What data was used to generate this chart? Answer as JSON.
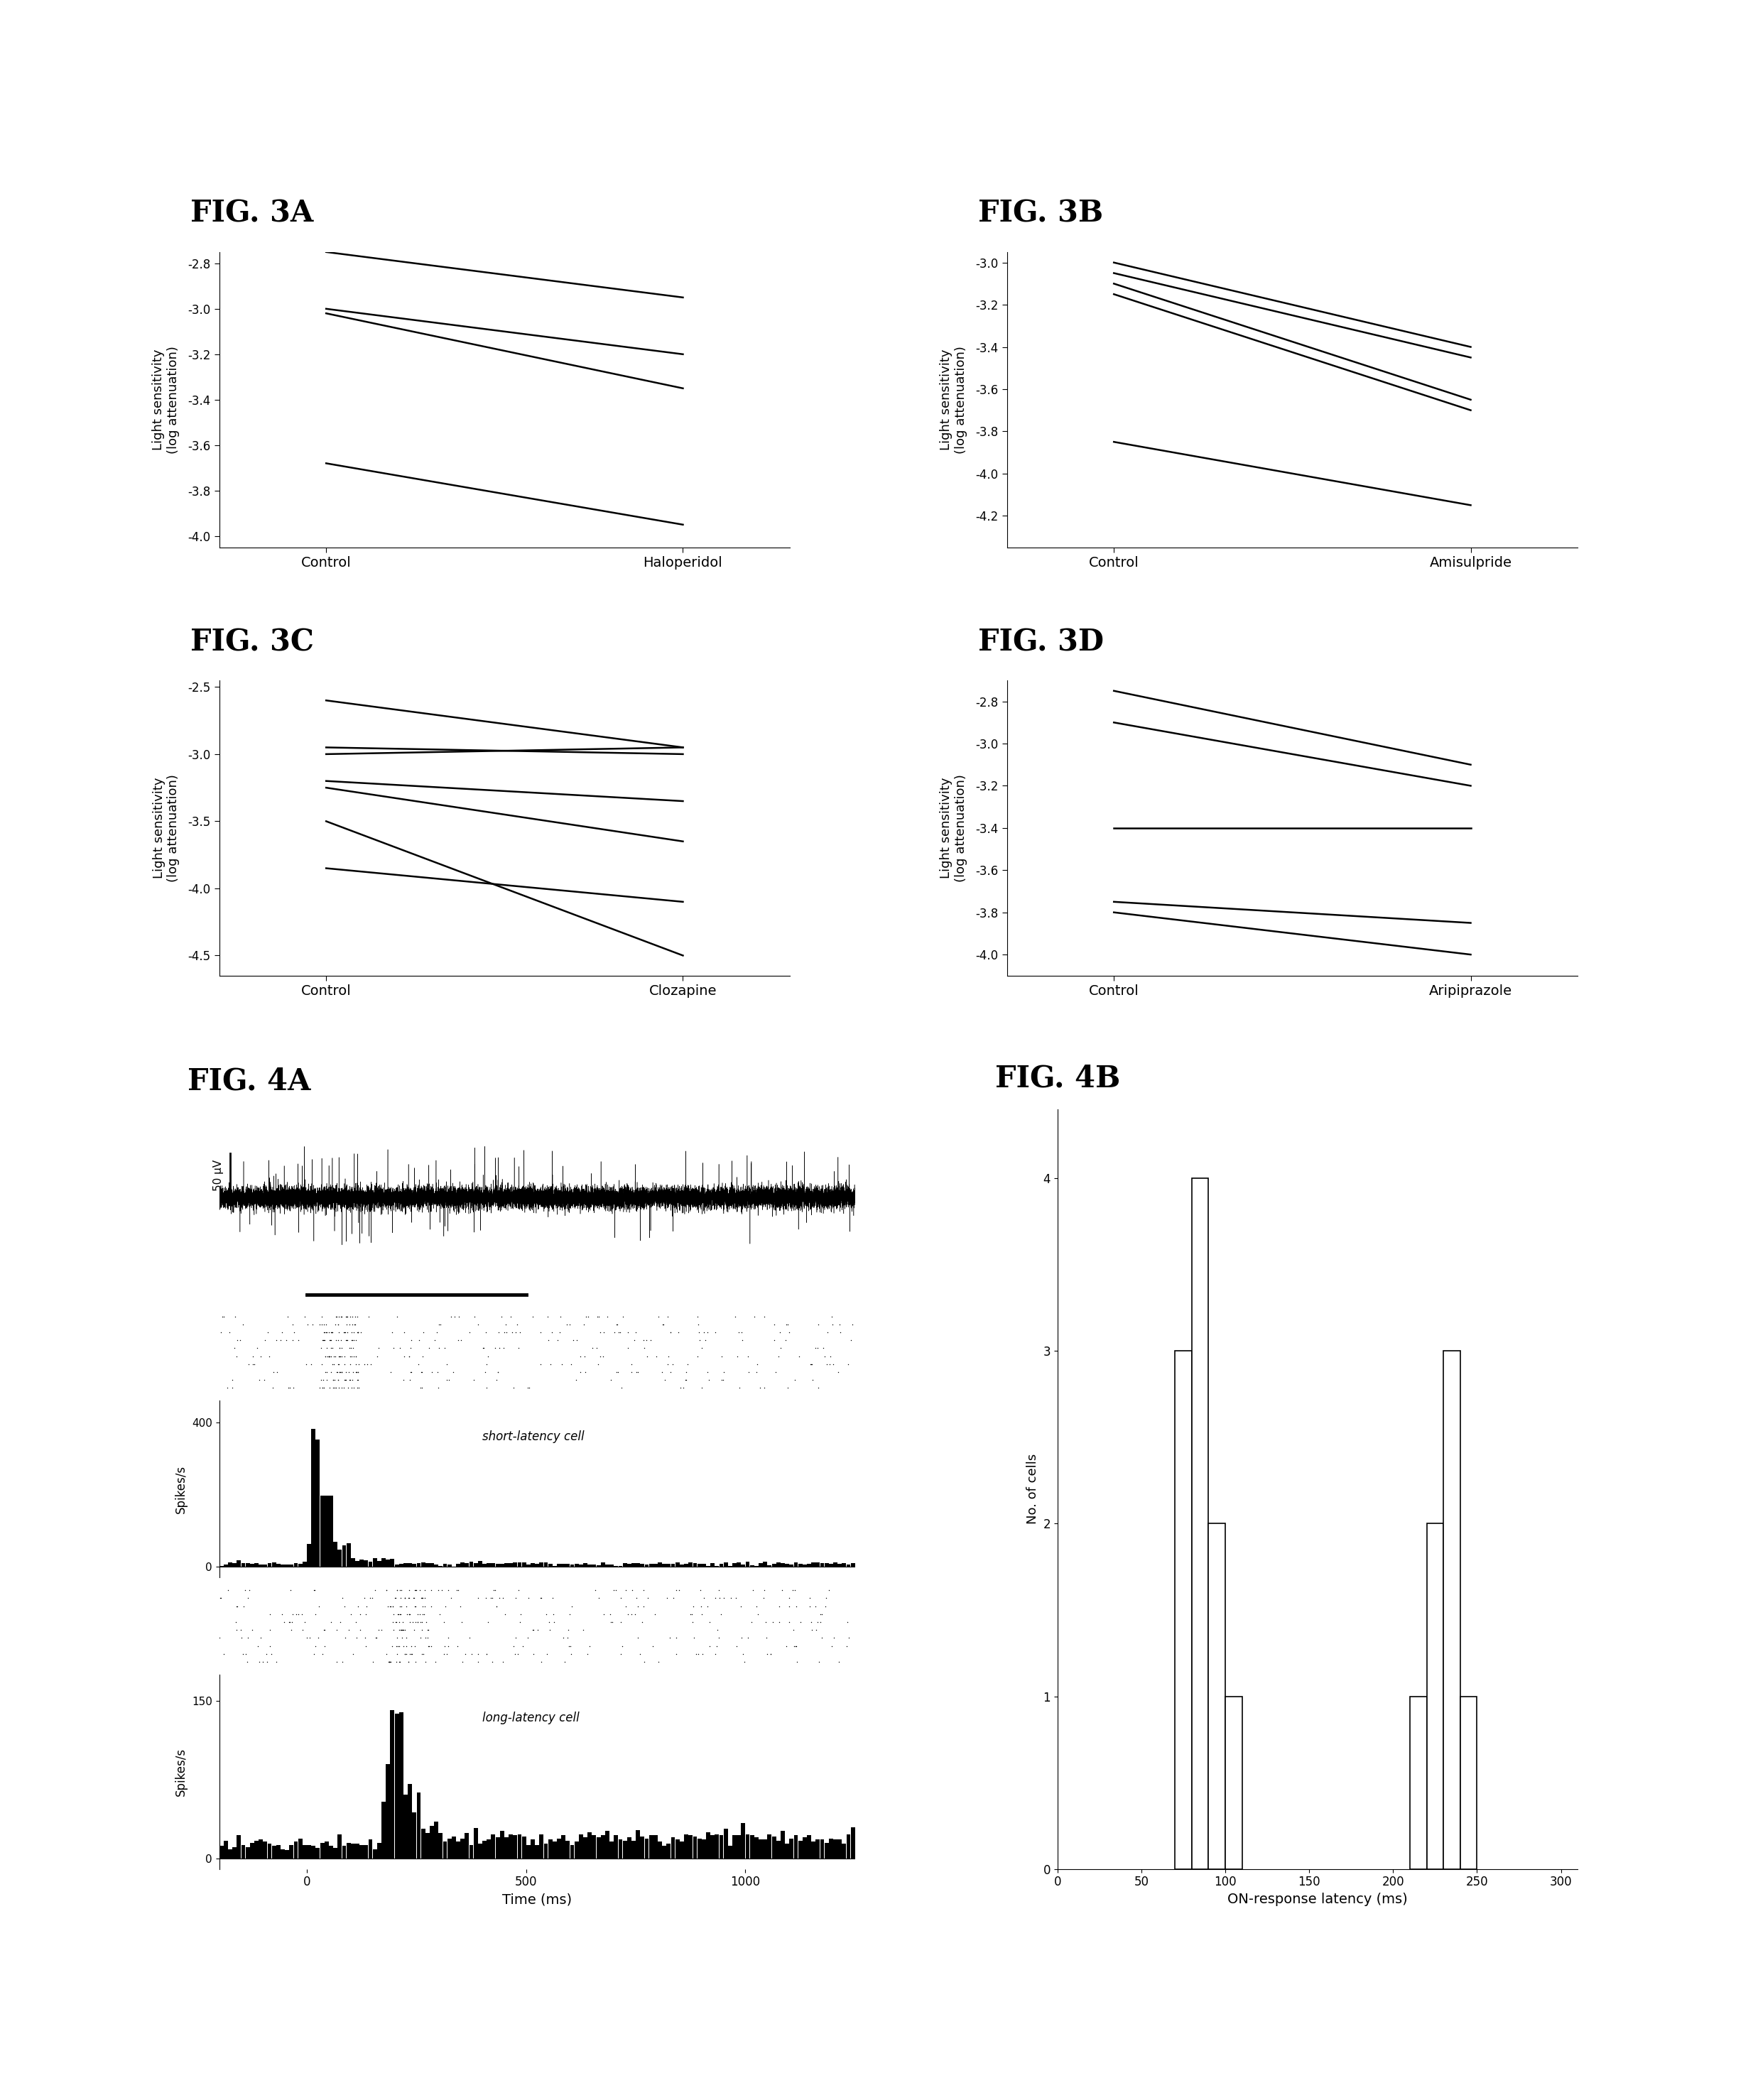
{
  "fig3A": {
    "title": "FIG. 3A",
    "xlabel_left": "Control",
    "xlabel_right": "Haloperidol",
    "ylabel": "Light sensitivity\n(log attenuation)",
    "ylim": [
      -2.75,
      -4.05
    ],
    "yticks": [
      -4.0,
      -3.8,
      -3.6,
      -3.4,
      -3.2,
      -3.0,
      -2.8
    ],
    "lines": [
      [
        -3.68,
        -3.95
      ],
      [
        -3.02,
        -3.35
      ],
      [
        -3.0,
        -3.2
      ],
      [
        -2.75,
        -2.95
      ]
    ]
  },
  "fig3B": {
    "title": "FIG. 3B",
    "xlabel_left": "Control",
    "xlabel_right": "Amisulpride",
    "ylabel": "Light sensitivity\n(log attenuation)",
    "ylim": [
      -2.95,
      -4.35
    ],
    "yticks": [
      -4.2,
      -4.0,
      -3.8,
      -3.6,
      -3.4,
      -3.2,
      -3.0
    ],
    "lines": [
      [
        -3.85,
        -4.15
      ],
      [
        -3.15,
        -3.7
      ],
      [
        -3.1,
        -3.65
      ],
      [
        -3.05,
        -3.45
      ],
      [
        -3.0,
        -3.4
      ]
    ]
  },
  "fig3C": {
    "title": "FIG. 3C",
    "xlabel_left": "Control",
    "xlabel_right": "Clozapine",
    "ylabel": "Light sensitivity\n(log attenuation)",
    "ylim": [
      -2.45,
      -4.65
    ],
    "yticks": [
      -4.5,
      -4.0,
      -3.5,
      -3.0,
      -2.5
    ],
    "lines": [
      [
        -3.85,
        -4.1
      ],
      [
        -3.5,
        -4.5
      ],
      [
        -3.25,
        -3.65
      ],
      [
        -3.2,
        -3.35
      ],
      [
        -3.0,
        -2.95
      ],
      [
        -2.95,
        -3.0
      ],
      [
        -2.6,
        -2.95
      ]
    ]
  },
  "fig3D": {
    "title": "FIG. 3D",
    "xlabel_left": "Control",
    "xlabel_right": "Aripiprazole",
    "ylabel": "Light sensitivity\n(log attenuation)",
    "ylim": [
      -2.7,
      -4.1
    ],
    "yticks": [
      -4.0,
      -3.8,
      -3.6,
      -3.4,
      -3.2,
      -3.0,
      -2.8
    ],
    "lines": [
      [
        -3.8,
        -4.0
      ],
      [
        -3.75,
        -3.85
      ],
      [
        -3.4,
        -3.4
      ],
      [
        -2.9,
        -3.2
      ],
      [
        -2.75,
        -3.1
      ]
    ]
  },
  "fig4B": {
    "title": "FIG. 4B",
    "xlabel": "ON-response latency (ms)",
    "ylabel": "No. of cells",
    "xlim": [
      0,
      310
    ],
    "ylim": [
      0,
      4.4
    ],
    "xticks": [
      0,
      50,
      100,
      150,
      200,
      250,
      300
    ],
    "yticks": [
      0,
      1,
      2,
      3,
      4
    ],
    "bin_edges": [
      70,
      80,
      90,
      100,
      110,
      120,
      210,
      220,
      230,
      240,
      250
    ],
    "counts": [
      3,
      4,
      2,
      1,
      0,
      0,
      1,
      2,
      3,
      1,
      0
    ]
  }
}
